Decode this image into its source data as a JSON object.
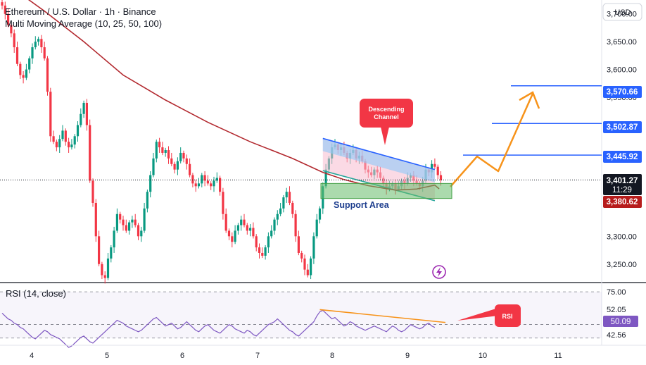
{
  "header": {
    "title": "Ethereum / U.S. Dollar · 1h · Binance",
    "indicator": "Multi Moving Average (10, 25, 50, 100)"
  },
  "currency_button": "USD",
  "rsi_label": "RSI (14, close)",
  "annotations": {
    "descending_channel": [
      "Descending",
      "Channel"
    ],
    "support_area": "Support Area",
    "rsi_note": "RSI"
  },
  "price_badges": {
    "level_1": "3,570.66",
    "level_2": "3,502.87",
    "level_3": "3,445.92",
    "current": "3,401.27",
    "countdown": "11:29",
    "support": "3,380.62"
  },
  "rsi_badges": {
    "upper": "52.05",
    "current": "50.09",
    "lower": "42.56"
  },
  "colors": {
    "bull": "#089981",
    "bear": "#f23645",
    "ma": "#b2282e",
    "level_line": "#2962ff",
    "projection": "#f7931a",
    "rsi_line": "#7e57c2",
    "support_fill": "#66bb6a",
    "note_red": "#f23645"
  },
  "chart_data": {
    "type": "candlestick",
    "symbol": "ETH/USD",
    "timeframe": "1h",
    "exchange": "Binance",
    "x_tick_labels": [
      "4",
      "5",
      "6",
      "7",
      "8",
      "9",
      "10",
      "11"
    ],
    "y_tick_labels": [
      "3,700.00",
      "3,650.00",
      "3,600.00",
      "3,550.00",
      "3,300.00",
      "3,250.00"
    ],
    "ylim": [
      3218,
      3725
    ],
    "resistance_levels": [
      3570.66,
      3502.87,
      3445.92
    ],
    "current_price": 3401.27,
    "support_level": 3380.62,
    "support_zone": [
      3368,
      3395
    ],
    "close_series": [
      3715,
      3700,
      3680,
      3665,
      3640,
      3610,
      3590,
      3585,
      3600,
      3620,
      3640,
      3650,
      3655,
      3640,
      3620,
      3560,
      3480,
      3470,
      3460,
      3475,
      3490,
      3470,
      3460,
      3465,
      3480,
      3500,
      3520,
      3540,
      3500,
      3400,
      3360,
      3300,
      3250,
      3230,
      3225,
      3260,
      3280,
      3310,
      3340,
      3330,
      3320,
      3310,
      3325,
      3330,
      3320,
      3300,
      3310,
      3350,
      3380,
      3410,
      3440,
      3470,
      3460,
      3450,
      3455,
      3440,
      3430,
      3420,
      3435,
      3450,
      3440,
      3430,
      3410,
      3395,
      3390,
      3395,
      3410,
      3400,
      3395,
      3390,
      3400,
      3405,
      3380,
      3340,
      3310,
      3300,
      3290,
      3310,
      3320,
      3330,
      3320,
      3310,
      3315,
      3300,
      3280,
      3270,
      3265,
      3280,
      3300,
      3310,
      3330,
      3340,
      3350,
      3370,
      3380,
      3360,
      3340,
      3300,
      3270,
      3260,
      3240,
      3230,
      3260,
      3300,
      3330,
      3350,
      3390,
      3420,
      3440,
      3460,
      3465,
      3455,
      3460,
      3450,
      3440,
      3450,
      3455,
      3440,
      3445,
      3435,
      3420,
      3415,
      3410,
      3420,
      3415,
      3405,
      3395,
      3385,
      3390,
      3395,
      3385,
      3390,
      3400,
      3395,
      3405,
      3410,
      3400,
      3395,
      3390,
      3400,
      3420,
      3415,
      3430,
      3425,
      3410,
      3401
    ],
    "moving_average": [
      {
        "x": 0,
        "y": 3760
      },
      {
        "x": 14,
        "y": 3705
      },
      {
        "x": 27,
        "y": 3650
      },
      {
        "x": 40,
        "y": 3590
      },
      {
        "x": 54,
        "y": 3545
      },
      {
        "x": 68,
        "y": 3505
      },
      {
        "x": 82,
        "y": 3470
      },
      {
        "x": 96,
        "y": 3440
      },
      {
        "x": 106,
        "y": 3415
      },
      {
        "x": 113,
        "y": 3402
      },
      {
        "x": 121,
        "y": 3391
      },
      {
        "x": 130,
        "y": 3383
      },
      {
        "x": 137,
        "y": 3385
      },
      {
        "x": 143,
        "y": 3392
      }
    ],
    "channel": {
      "upper": [
        {
          "x": 106,
          "y": 3476
        },
        {
          "x": 143,
          "y": 3420
        }
      ],
      "lower": [
        {
          "x": 106,
          "y": 3418
        },
        {
          "x": 143,
          "y": 3364
        }
      ]
    },
    "projection_path": [
      {
        "x": 146,
        "y": 3393
      },
      {
        "x": 155,
        "y": 3449
      },
      {
        "x": 162,
        "y": 3425
      },
      {
        "x": 173,
        "y": 3570
      },
      {
        "x": 174,
        "y": 3550
      }
    ],
    "rsi": {
      "label": "RSI (14, close)",
      "ylim": [
        37.5,
        80
      ],
      "upper_band": 52.05,
      "lower_band": 42.56,
      "current": 50.09,
      "tick_labels": [
        "75.00"
      ],
      "values": [
        60,
        58,
        56,
        55,
        53,
        52,
        50,
        49,
        47,
        45,
        43,
        42,
        44,
        46,
        48,
        47,
        45,
        44,
        43,
        42,
        40,
        38,
        36,
        37,
        39,
        41,
        43,
        44,
        42,
        40,
        39,
        41,
        43,
        45,
        47,
        49,
        51,
        53,
        55,
        54,
        53,
        51,
        50,
        49,
        48,
        47,
        48,
        50,
        52,
        54,
        56,
        57,
        55,
        53,
        51,
        52,
        53,
        51,
        49,
        50,
        52,
        54,
        52,
        50,
        48,
        47,
        49,
        51,
        52,
        50,
        48,
        47,
        46,
        48,
        50,
        52,
        51,
        49,
        48,
        47,
        46,
        48,
        47,
        45,
        44,
        46,
        48,
        50,
        52,
        53,
        54,
        56,
        54,
        52,
        50,
        48,
        47,
        45,
        44,
        46,
        48,
        50,
        52,
        54,
        58,
        61,
        62,
        60,
        58,
        56,
        57,
        55,
        53,
        51,
        52,
        54,
        53,
        51,
        50,
        49,
        48,
        49,
        50,
        51,
        50,
        49,
        48,
        47,
        49,
        51,
        50,
        48,
        47,
        48,
        50,
        52,
        51,
        50,
        49,
        50,
        52,
        53,
        51,
        50
      ]
    }
  }
}
